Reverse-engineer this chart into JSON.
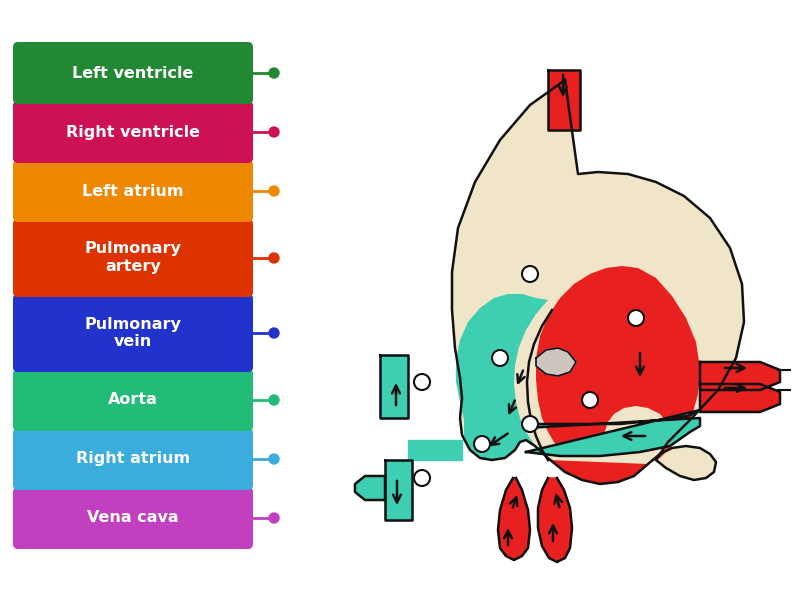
{
  "background_color": "#ffffff",
  "labels": [
    {
      "text": "Vena cava",
      "color": "#c040c0",
      "dot_color": "#c040c0"
    },
    {
      "text": "Right atrium",
      "color": "#3aaddd",
      "dot_color": "#3aaddd"
    },
    {
      "text": "Aorta",
      "color": "#22bb77",
      "dot_color": "#22bb77"
    },
    {
      "text": "Pulmonary\nvein",
      "color": "#2233cc",
      "dot_color": "#2233cc"
    },
    {
      "text": "Pulmonary\nartery",
      "color": "#dd3300",
      "dot_color": "#dd3300"
    },
    {
      "text": "Left atrium",
      "color": "#ee8800",
      "dot_color": "#ee8800"
    },
    {
      "text": "Right ventricle",
      "color": "#cc1155",
      "dot_color": "#cc1155"
    },
    {
      "text": "Left ventricle",
      "color": "#228833",
      "dot_color": "#228833"
    }
  ],
  "RED": "#e82020",
  "TEAL": "#3ecfb2",
  "CREAM": "#f0e5c8",
  "OUTLINE": "#111111"
}
